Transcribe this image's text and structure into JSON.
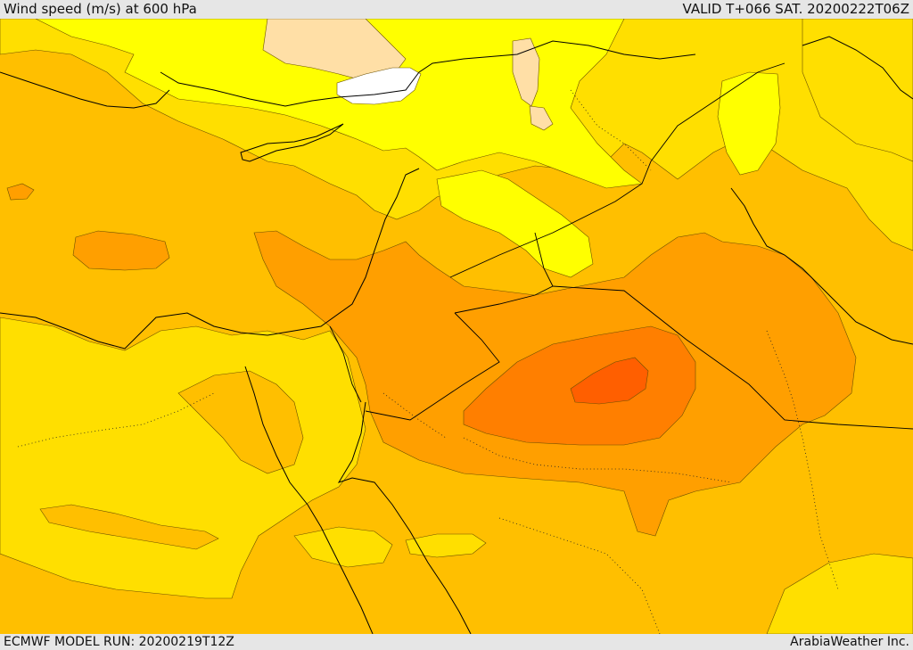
{
  "header": {
    "title": "Wind speed (m/s) at 600 hPa",
    "valid": "VALID T+066 SAT. 20200222T06Z"
  },
  "footer": {
    "model_run": "ECMWF MODEL RUN: 20200219T12Z",
    "credit": "ArabiaWeather Inc."
  },
  "colors": {
    "bands_light_to_strong": [
      "#ffffff",
      "#ffdfa6",
      "#ffff00",
      "#ffdf00",
      "#ffbf00",
      "#ff9f00",
      "#ff7f00",
      "#ff5f00"
    ]
  }
}
